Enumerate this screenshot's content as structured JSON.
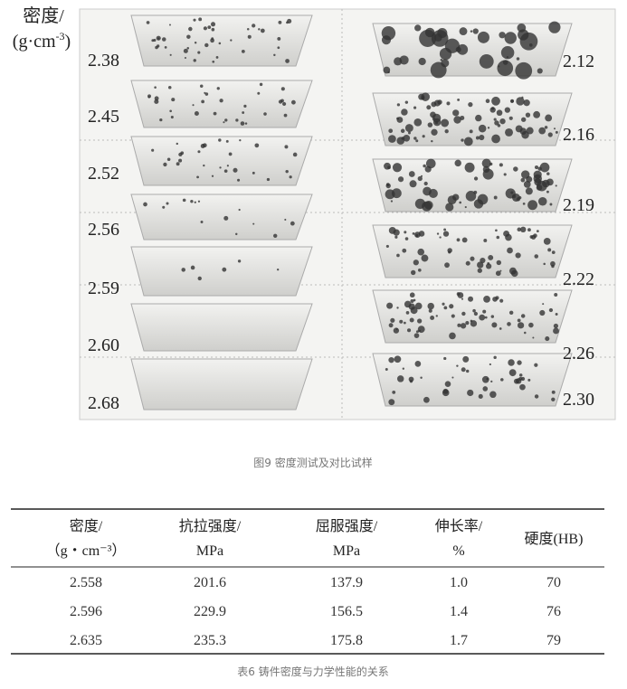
{
  "figure": {
    "axis_label": {
      "line1": "密度/",
      "unit_base": "(g·cm",
      "unit_exp": "-3",
      "unit_close": ")"
    },
    "left_densities": [
      "2.38",
      "2.45",
      "2.52",
      "2.56",
      "2.59",
      "2.60",
      "2.68"
    ],
    "right_densities": [
      "2.12",
      "2.16",
      "2.19",
      "2.22",
      "2.26",
      "2.30"
    ],
    "caption": "图9 密度测试及对比试样"
  },
  "table": {
    "header": [
      [
        "密度/",
        "（g・cm⁻³）"
      ],
      [
        "抗拉强度/",
        "MPa"
      ],
      [
        "屈服强度/",
        "MPa"
      ],
      [
        "伸长率/",
        "%"
      ],
      [
        "硬度(HB)"
      ]
    ],
    "rows": [
      [
        "2.558",
        "201.6",
        "137.9",
        "1.0",
        "70"
      ],
      [
        "2.596",
        "229.9",
        "156.5",
        "1.4",
        "76"
      ],
      [
        "2.635",
        "235.3",
        "175.8",
        "1.7",
        "79"
      ]
    ],
    "caption": "表6 铸件密度与力学性能的关系"
  }
}
